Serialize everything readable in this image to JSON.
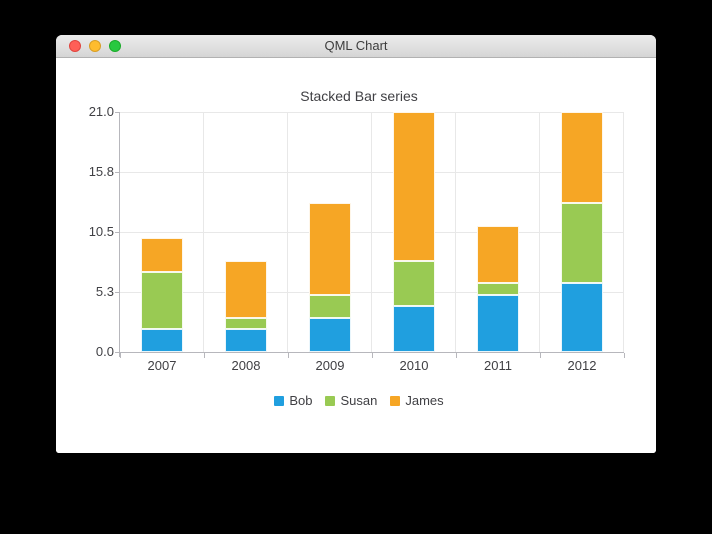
{
  "window": {
    "title": "QML Chart",
    "traffic_lights": {
      "close": "close",
      "minimize": "minimize",
      "zoom": "zoom"
    }
  },
  "chart_data": {
    "type": "bar",
    "stacked": true,
    "title": "Stacked Bar series",
    "categories": [
      "2007",
      "2008",
      "2009",
      "2010",
      "2011",
      "2012"
    ],
    "series": [
      {
        "name": "Bob",
        "color": "#209fdf",
        "values": [
          2,
          2,
          3,
          4,
          5,
          6
        ]
      },
      {
        "name": "Susan",
        "color": "#99ca53",
        "values": [
          5,
          1,
          2,
          4,
          1,
          7
        ]
      },
      {
        "name": "James",
        "color": "#f6a625",
        "values": [
          3,
          5,
          8,
          13,
          5,
          8
        ]
      }
    ],
    "stack_totals": [
      10,
      8,
      13,
      21,
      11,
      21
    ],
    "y_axis": {
      "min": 0,
      "max": 21,
      "ticks_top_to_bottom": [
        "21.0",
        "15.8",
        "10.5",
        "5.3",
        "0.0"
      ]
    },
    "xlabel": "",
    "ylabel": "",
    "grid": true,
    "legend_position": "bottom",
    "colors": {
      "axis_line": "#b7b7bc",
      "grid_line": "#e8e8e8",
      "text": "#404044"
    }
  }
}
